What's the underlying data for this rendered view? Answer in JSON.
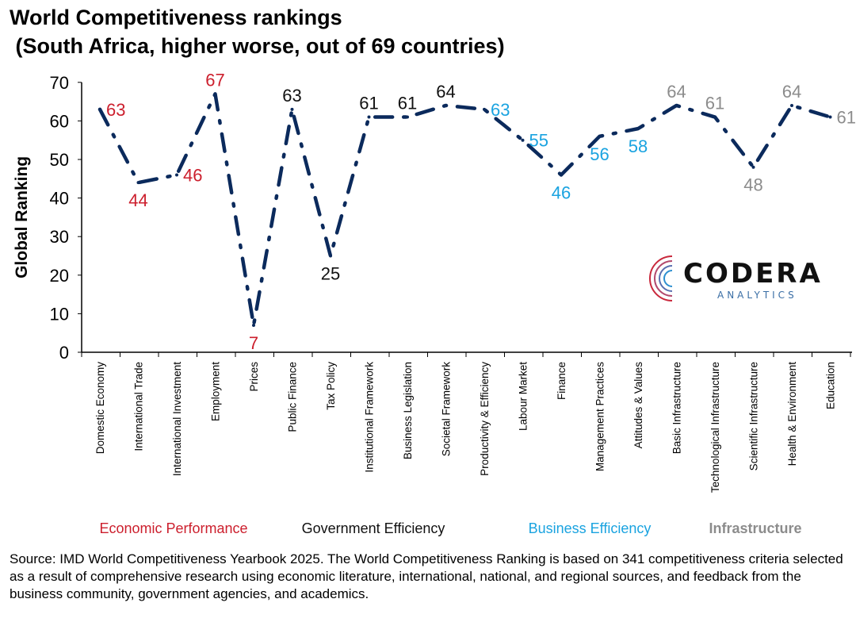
{
  "header": {
    "title_line1": "World Competitiveness rankings",
    "title_line2": " (South Africa, higher worse, out of 69 countries)"
  },
  "logo": {
    "name": "CODERA",
    "sub": "ANALYTICS"
  },
  "source": "Source: IMD World Competitiveness Yearbook 2025. The World Competitiveness Ranking is based on 341 competitiveness criteria selected as a result of comprehensive research using economic literature, international, national, and regional sources, and feedback from the business community, government agencies, and academics.",
  "colors": {
    "line": "#0b2a5c",
    "Economic Performance": "#cc1f2d",
    "Government Efficiency": "#111111",
    "Business Efficiency": "#1aa3e0",
    "Infrastructure": "#8c8c8c"
  },
  "chart_data": {
    "type": "line",
    "ylabel": "Global Ranking",
    "ylim": [
      0,
      70
    ],
    "yticks": [
      0,
      10,
      20,
      30,
      40,
      50,
      60,
      70
    ],
    "categories": [
      "Domestic Economy",
      "International Trade",
      "International Investment",
      "Employment",
      "Prices",
      "Public Finance",
      "Tax Policy",
      "Institutional Framework",
      "Business Legislation",
      "Societal Framework",
      "Productivity & Efficiency",
      "Labour Market",
      "Finance",
      "Management Practices",
      "Attitudes & Values",
      "Basic Infrastructure",
      "Technological Infrastructure",
      "Scientific Infrastructure",
      "Health & Environment",
      "Education"
    ],
    "values": [
      63,
      44,
      46,
      67,
      7,
      63,
      25,
      61,
      61,
      64,
      63,
      55,
      46,
      56,
      58,
      64,
      61,
      48,
      64,
      61
    ],
    "groups": [
      "Economic Performance",
      "Economic Performance",
      "Economic Performance",
      "Economic Performance",
      "Economic Performance",
      "Government Efficiency",
      "Government Efficiency",
      "Government Efficiency",
      "Government Efficiency",
      "Government Efficiency",
      "Business Efficiency",
      "Business Efficiency",
      "Business Efficiency",
      "Business Efficiency",
      "Business Efficiency",
      "Infrastructure",
      "Infrastructure",
      "Infrastructure",
      "Infrastructure",
      "Infrastructure"
    ],
    "group_labels": [
      "Economic Performance",
      "Government Efficiency",
      "Business Efficiency",
      "Infrastructure"
    ],
    "label_positions": [
      "right",
      "below",
      "right",
      "above",
      "below",
      "above",
      "below",
      "above",
      "above",
      "above",
      "right",
      "right",
      "below",
      "below",
      "below",
      "above",
      "above",
      "below",
      "above",
      "right"
    ],
    "grid": false,
    "legend": "none"
  }
}
